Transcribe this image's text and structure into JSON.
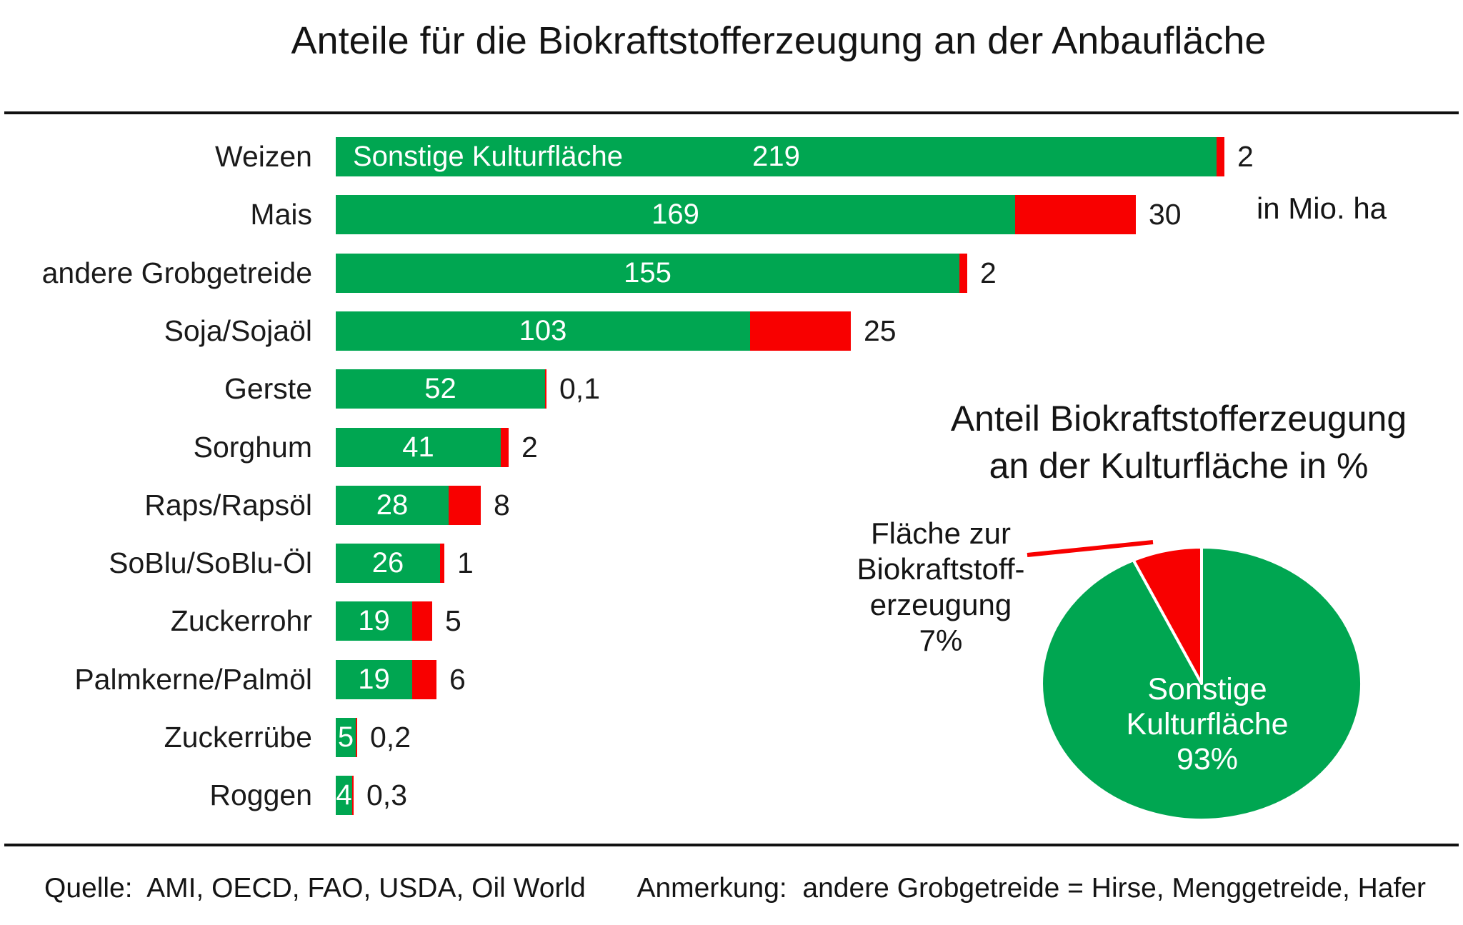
{
  "title": "Anteile für die Biokraftstofferzeugung an der Anbaufläche",
  "unit_label": "in Mio. ha",
  "footer": {
    "source": "Quelle:  AMI, OECD, FAO, USDA, Oil World",
    "note": "Anmerkung:  andere Grobgetreide = Hirse, Menggetreide, Hafer"
  },
  "colors": {
    "green": "#00A651",
    "red": "#F80000",
    "text": "#1a1a1a",
    "bar_text": "#ffffff",
    "rule": "#111111"
  },
  "chart_data": [
    {
      "type": "bar",
      "orientation": "horizontal",
      "stacked": true,
      "unit": "Mio. ha",
      "grid": false,
      "series_names": [
        "Sonstige Kulturfläche",
        "Fläche zur Biokraftstofferzeugung"
      ],
      "first_bar_inline_label": "Sonstige Kulturfläche",
      "xlim": [
        0,
        230
      ],
      "rows": [
        {
          "category": "Weizen",
          "green": 219,
          "red": 2,
          "green_label": "219",
          "red_label": "2"
        },
        {
          "category": "Mais",
          "green": 169,
          "red": 30,
          "green_label": "169",
          "red_label": "30"
        },
        {
          "category": "andere Grobgetreide",
          "green": 155,
          "red": 2,
          "green_label": "155",
          "red_label": "2"
        },
        {
          "category": "Soja/Sojaöl",
          "green": 103,
          "red": 25,
          "green_label": "103",
          "red_label": "25"
        },
        {
          "category": "Gerste",
          "green": 52,
          "red": 0.1,
          "green_label": "52",
          "red_label": "0,1"
        },
        {
          "category": "Sorghum",
          "green": 41,
          "red": 2,
          "green_label": "41",
          "red_label": "2"
        },
        {
          "category": "Raps/Rapsöl",
          "green": 28,
          "red": 8,
          "green_label": "28",
          "red_label": "8"
        },
        {
          "category": "SoBlu/SoBlu-Öl",
          "green": 26,
          "red": 1,
          "green_label": "26",
          "red_label": "1"
        },
        {
          "category": "Zuckerrohr",
          "green": 19,
          "red": 5,
          "green_label": "19",
          "red_label": "5"
        },
        {
          "category": "Palmkerne/Palmöl",
          "green": 19,
          "red": 6,
          "green_label": "19",
          "red_label": "6"
        },
        {
          "category": "Zuckerrübe",
          "green": 5,
          "red": 0.2,
          "green_label": "5",
          "red_label": "0,2"
        },
        {
          "category": "Roggen",
          "green": 4,
          "red": 0.3,
          "green_label": "4",
          "red_label": "0,3"
        }
      ]
    },
    {
      "type": "pie",
      "title": "Anteil Biokraftstofferzeugung an der Kulturfläche in %",
      "title_lines": [
        "Anteil Biokraftstofferzeugung",
        "an der Kulturfläche in %"
      ],
      "slices": [
        {
          "label": "Sonstige Kulturfläche",
          "pct": 93,
          "color": "green"
        },
        {
          "label": "Fläche zur Biokraftstofferzeugung",
          "pct": 7,
          "color": "red"
        }
      ],
      "inner_label_lines": [
        "Sonstige",
        "Kulturfläche",
        "93%"
      ],
      "callout_lines": [
        "Fläche zur",
        "Biokraftstoff-",
        "erzeugung",
        "7%"
      ],
      "legend": "none"
    }
  ]
}
